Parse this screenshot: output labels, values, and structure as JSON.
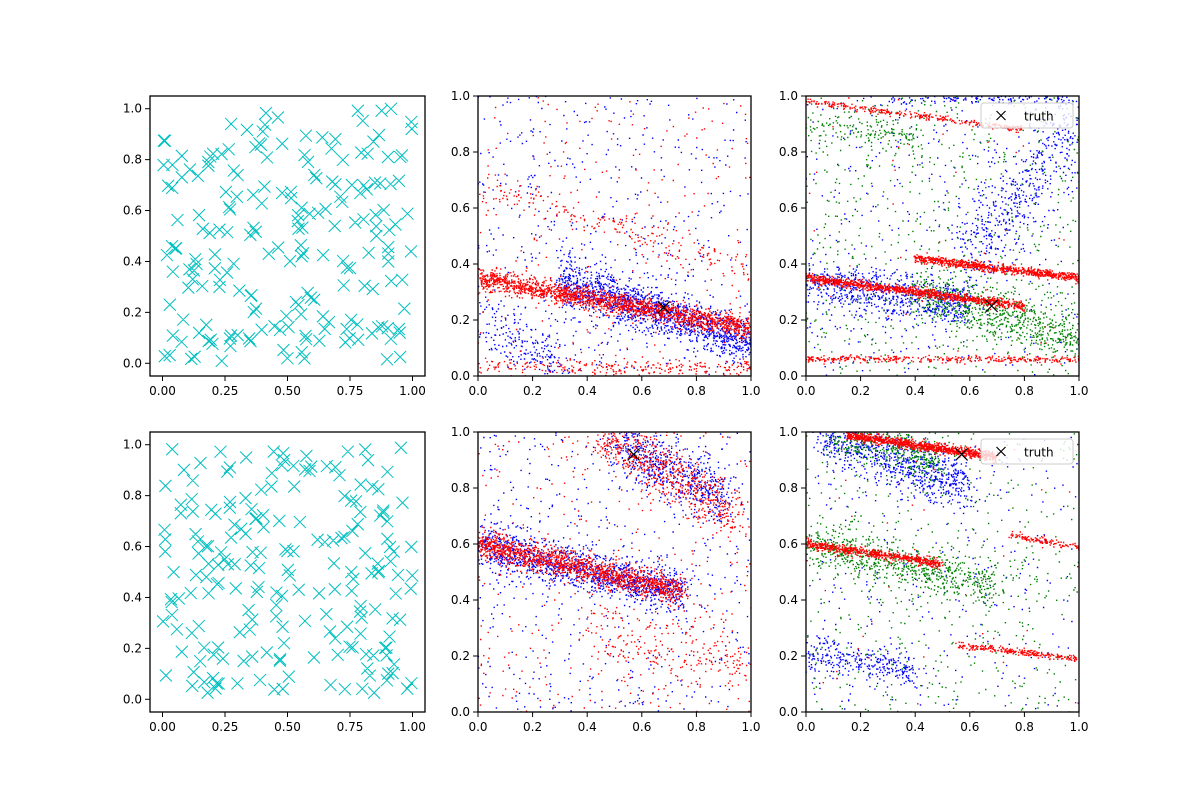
{
  "figure": {
    "background": "#ffffff"
  },
  "colors": {
    "cyan": "#00bfbf",
    "blue": "#0000ff",
    "red": "#ff0000",
    "green": "#008000",
    "black": "#000000"
  },
  "chart_data": [
    {
      "id": "top-left",
      "type": "scatter",
      "xlim": [
        -0.05,
        1.05
      ],
      "ylim": [
        -0.05,
        1.05
      ],
      "xticks": [
        "0.00",
        "0.25",
        "0.50",
        "0.75",
        "1.00"
      ],
      "xtick_values": [
        0,
        0.25,
        0.5,
        0.75,
        1.0
      ],
      "yticks": [
        "0.0",
        "0.2",
        "0.4",
        "0.6",
        "0.8",
        "1.0"
      ],
      "ytick_values": [
        0,
        0.2,
        0.4,
        0.6,
        0.8,
        1.0
      ],
      "marker": "x",
      "marker_color": "#00bfbf",
      "point_count": 200,
      "description": "Uniformly scattered cyan x markers over the unit square"
    },
    {
      "id": "top-middle",
      "type": "scatter",
      "xlim": [
        0,
        1
      ],
      "ylim": [
        0,
        1
      ],
      "xticks": [
        "0.0",
        "0.2",
        "0.4",
        "0.6",
        "0.8",
        "1.0"
      ],
      "xtick_values": [
        0,
        0.2,
        0.4,
        0.6,
        0.8,
        1.0
      ],
      "yticks": [
        "0.0",
        "0.2",
        "0.4",
        "0.6",
        "0.8",
        "1.0"
      ],
      "ytick_values": [
        0,
        0.2,
        0.4,
        0.6,
        0.8,
        1.0
      ],
      "series": [
        {
          "color": "#0000ff",
          "marker": "point",
          "bands": [
            {
              "x0": 0.3,
              "y0": 0.34,
              "x1": 1.0,
              "y1": 0.12,
              "spread": 0.04,
              "n": 1400
            },
            {
              "x0": 0.0,
              "y0": 0.22,
              "x1": 0.3,
              "y1": 0.05,
              "spread": 0.05,
              "n": 200
            }
          ],
          "noise": 500
        },
        {
          "color": "#ff0000",
          "marker": "point",
          "bands": [
            {
              "x0": 0.0,
              "y0": 0.35,
              "x1": 1.0,
              "y1": 0.17,
              "spread": 0.02,
              "n": 1800
            },
            {
              "x0": 0.0,
              "y0": 0.03,
              "x1": 1.0,
              "y1": 0.03,
              "spread": 0.015,
              "n": 250
            },
            {
              "x0": 0.0,
              "y0": 0.68,
              "x1": 1.0,
              "y1": 0.38,
              "spread": 0.03,
              "n": 200
            }
          ],
          "noise": 250
        }
      ],
      "truth": {
        "x": 0.68,
        "y": 0.245
      }
    },
    {
      "id": "top-right",
      "type": "scatter",
      "xlim": [
        0,
        1
      ],
      "ylim": [
        0,
        1
      ],
      "xticks": [
        "0.0",
        "0.2",
        "0.4",
        "0.6",
        "0.8",
        "1.0"
      ],
      "xtick_values": [
        0,
        0.2,
        0.4,
        0.6,
        0.8,
        1.0
      ],
      "yticks": [
        "0.0",
        "0.2",
        "0.4",
        "0.6",
        "0.8",
        "1.0"
      ],
      "ytick_values": [
        0,
        0.2,
        0.4,
        0.6,
        0.8,
        1.0
      ],
      "series": [
        {
          "color": "#0000ff",
          "marker": "point",
          "bands": [
            {
              "x0": 0.0,
              "y0": 0.33,
              "x1": 0.6,
              "y1": 0.25,
              "spread": 0.04,
              "n": 700
            },
            {
              "x0": 0.6,
              "y0": 0.45,
              "x1": 1.0,
              "y1": 0.9,
              "spread": 0.08,
              "n": 500
            },
            {
              "x0": 0.3,
              "y0": 0.99,
              "x1": 1.0,
              "y1": 0.99,
              "spread": 0.01,
              "n": 150
            }
          ],
          "noise": 400
        },
        {
          "color": "#008000",
          "marker": "point",
          "bands": [
            {
              "x0": 0.4,
              "y0": 0.3,
              "x1": 1.0,
              "y1": 0.13,
              "spread": 0.05,
              "n": 700
            },
            {
              "x0": 0.0,
              "y0": 0.9,
              "x1": 0.4,
              "y1": 0.85,
              "spread": 0.03,
              "n": 150
            }
          ],
          "noise": 600
        },
        {
          "color": "#ff0000",
          "marker": "point",
          "bands": [
            {
              "x0": 0.0,
              "y0": 0.35,
              "x1": 0.8,
              "y1": 0.25,
              "spread": 0.008,
              "n": 1100
            },
            {
              "x0": 0.4,
              "y0": 0.42,
              "x1": 1.0,
              "y1": 0.35,
              "spread": 0.008,
              "n": 800
            },
            {
              "x0": 0.0,
              "y0": 0.06,
              "x1": 1.0,
              "y1": 0.06,
              "spread": 0.006,
              "n": 350
            },
            {
              "x0": 0.0,
              "y0": 0.98,
              "x1": 0.8,
              "y1": 0.88,
              "spread": 0.006,
              "n": 300
            }
          ],
          "noise": 40
        }
      ],
      "truth": {
        "x": 0.68,
        "y": 0.25
      },
      "legend": {
        "label": "truth",
        "marker": "x",
        "loc": "upper right"
      }
    },
    {
      "id": "bottom-left",
      "type": "scatter",
      "xlim": [
        -0.05,
        1.05
      ],
      "ylim": [
        -0.05,
        1.05
      ],
      "xticks": [
        "0.00",
        "0.25",
        "0.50",
        "0.75",
        "1.00"
      ],
      "xtick_values": [
        0,
        0.25,
        0.5,
        0.75,
        1.0
      ],
      "yticks": [
        "0.0",
        "0.2",
        "0.4",
        "0.6",
        "0.8",
        "1.0"
      ],
      "ytick_values": [
        0,
        0.2,
        0.4,
        0.6,
        0.8,
        1.0
      ],
      "marker": "x",
      "marker_color": "#00bfbf",
      "point_count": 200,
      "description": "Uniformly scattered cyan x markers over the unit square"
    },
    {
      "id": "bottom-middle",
      "type": "scatter",
      "xlim": [
        0,
        1
      ],
      "ylim": [
        0,
        1
      ],
      "xticks": [
        "0.0",
        "0.2",
        "0.4",
        "0.6",
        "0.8",
        "1.0"
      ],
      "xtick_values": [
        0,
        0.2,
        0.4,
        0.6,
        0.8,
        1.0
      ],
      "yticks": [
        "0.0",
        "0.2",
        "0.4",
        "0.6",
        "0.8",
        "1.0"
      ],
      "ytick_values": [
        0,
        0.2,
        0.4,
        0.6,
        0.8,
        1.0
      ],
      "series": [
        {
          "color": "#0000ff",
          "marker": "point",
          "bands": [
            {
              "x0": 0.0,
              "y0": 0.6,
              "x1": 0.75,
              "y1": 0.42,
              "spread": 0.04,
              "n": 1200
            },
            {
              "x0": 0.5,
              "y0": 0.98,
              "x1": 0.9,
              "y1": 0.75,
              "spread": 0.06,
              "n": 600
            }
          ],
          "noise": 500
        },
        {
          "color": "#ff0000",
          "marker": "point",
          "bands": [
            {
              "x0": 0.0,
              "y0": 0.6,
              "x1": 0.75,
              "y1": 0.43,
              "spread": 0.025,
              "n": 1400
            },
            {
              "x0": 0.45,
              "y0": 0.99,
              "x1": 0.95,
              "y1": 0.7,
              "spread": 0.05,
              "n": 600
            },
            {
              "x0": 0.4,
              "y0": 0.3,
              "x1": 1.0,
              "y1": 0.15,
              "spread": 0.05,
              "n": 200
            }
          ],
          "noise": 400
        }
      ],
      "truth": {
        "x": 0.57,
        "y": 0.92
      }
    },
    {
      "id": "bottom-right",
      "type": "scatter",
      "xlim": [
        0,
        1
      ],
      "ylim": [
        0,
        1
      ],
      "xticks": [
        "0.0",
        "0.2",
        "0.4",
        "0.6",
        "0.8",
        "1.0"
      ],
      "xtick_values": [
        0,
        0.2,
        0.4,
        0.6,
        0.8,
        1.0
      ],
      "yticks": [
        "0.0",
        "0.2",
        "0.4",
        "0.6",
        "0.8",
        "1.0"
      ],
      "ytick_values": [
        0,
        0.2,
        0.4,
        0.6,
        0.8,
        1.0
      ],
      "series": [
        {
          "color": "#0000ff",
          "marker": "point",
          "bands": [
            {
              "x0": 0.05,
              "y0": 1.0,
              "x1": 0.6,
              "y1": 0.8,
              "spread": 0.05,
              "n": 800
            },
            {
              "x0": 0.0,
              "y0": 0.2,
              "x1": 0.4,
              "y1": 0.15,
              "spread": 0.03,
              "n": 300
            }
          ],
          "noise": 300
        },
        {
          "color": "#008000",
          "marker": "point",
          "bands": [
            {
              "x0": 0.0,
              "y0": 0.6,
              "x1": 0.7,
              "y1": 0.45,
              "spread": 0.04,
              "n": 700
            },
            {
              "x0": 0.1,
              "y0": 1.0,
              "x1": 0.5,
              "y1": 0.9,
              "spread": 0.04,
              "n": 400
            }
          ],
          "noise": 500
        },
        {
          "color": "#ff0000",
          "marker": "point",
          "bands": [
            {
              "x0": 0.15,
              "y0": 0.99,
              "x1": 0.7,
              "y1": 0.91,
              "spread": 0.008,
              "n": 1000
            },
            {
              "x0": 0.0,
              "y0": 0.6,
              "x1": 0.5,
              "y1": 0.53,
              "spread": 0.008,
              "n": 600
            },
            {
              "x0": 0.55,
              "y0": 0.24,
              "x1": 1.0,
              "y1": 0.19,
              "spread": 0.006,
              "n": 250
            },
            {
              "x0": 0.75,
              "y0": 0.63,
              "x1": 1.0,
              "y1": 0.59,
              "spread": 0.006,
              "n": 120
            }
          ],
          "noise": 40
        }
      ],
      "truth": {
        "x": 0.57,
        "y": 0.92
      },
      "legend": {
        "label": "truth",
        "marker": "x",
        "loc": "upper right"
      }
    }
  ]
}
